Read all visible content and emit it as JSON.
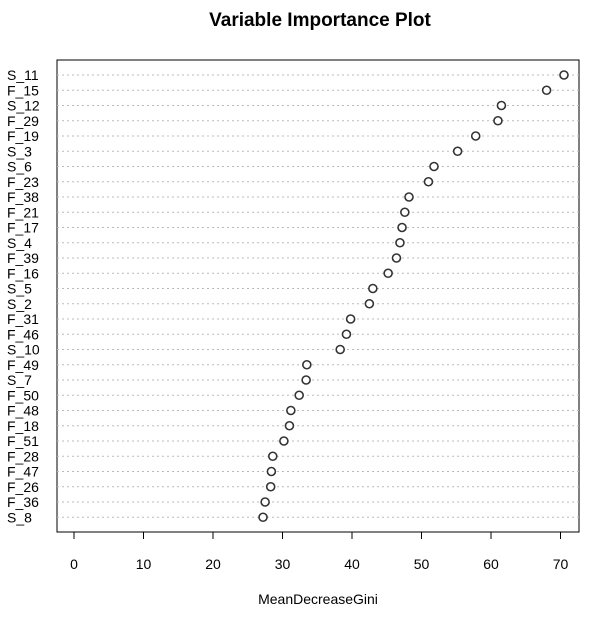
{
  "chart_data": {
    "type": "scatter",
    "title": "Variable Importance Plot",
    "xlabel": "MeanDecreaseGini",
    "ylabel": "",
    "xlim": [
      0,
      72
    ],
    "x_ticks": [
      0,
      10,
      20,
      30,
      40,
      50,
      60,
      70
    ],
    "grid": "horizontal dotted",
    "categories": [
      "S_11",
      "F_15",
      "S_12",
      "F_29",
      "F_19",
      "S_3",
      "S_6",
      "F_23",
      "F_38",
      "F_21",
      "F_17",
      "S_4",
      "F_39",
      "F_16",
      "S_5",
      "S_2",
      "F_31",
      "F_46",
      "S_10",
      "F_49",
      "S_7",
      "F_50",
      "F_48",
      "F_18",
      "F_51",
      "F_28",
      "F_47",
      "F_26",
      "F_36",
      "S_8"
    ],
    "values": [
      70.5,
      68.0,
      61.5,
      61.0,
      57.8,
      55.2,
      51.8,
      51.0,
      48.2,
      47.6,
      47.2,
      46.9,
      46.4,
      45.2,
      43.0,
      42.5,
      39.8,
      39.2,
      38.3,
      33.5,
      33.4,
      32.4,
      31.2,
      31.0,
      30.2,
      28.6,
      28.4,
      28.3,
      27.5,
      27.2
    ]
  }
}
